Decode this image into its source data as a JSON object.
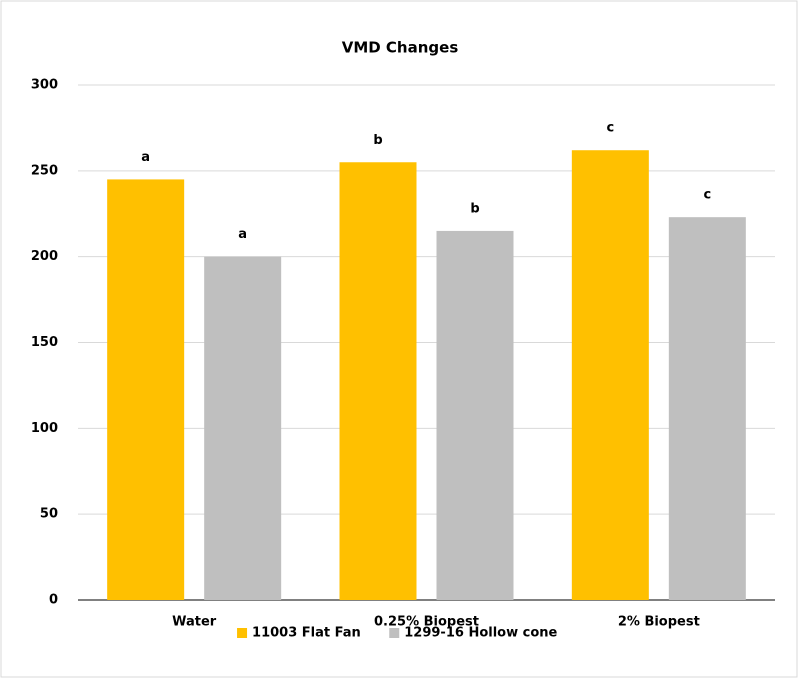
{
  "chart_data": {
    "type": "bar",
    "title": "VMD Changes",
    "categories": [
      "Water",
      "0.25% Biopest",
      "2% Biopest"
    ],
    "series": [
      {
        "name": "11003 Flat Fan",
        "color": "#ffc000",
        "values": [
          245,
          255,
          262
        ],
        "letters": [
          "a",
          "b",
          "c"
        ]
      },
      {
        "name": "1299-16 Hollow cone",
        "color": "#bfbfbf",
        "values": [
          200,
          215,
          223
        ],
        "letters": [
          "a",
          "b",
          "c"
        ]
      }
    ],
    "ylim": [
      0,
      300
    ],
    "yticks": [
      0,
      50,
      100,
      150,
      200,
      250,
      300
    ],
    "grid": true,
    "legend": "bottom"
  }
}
